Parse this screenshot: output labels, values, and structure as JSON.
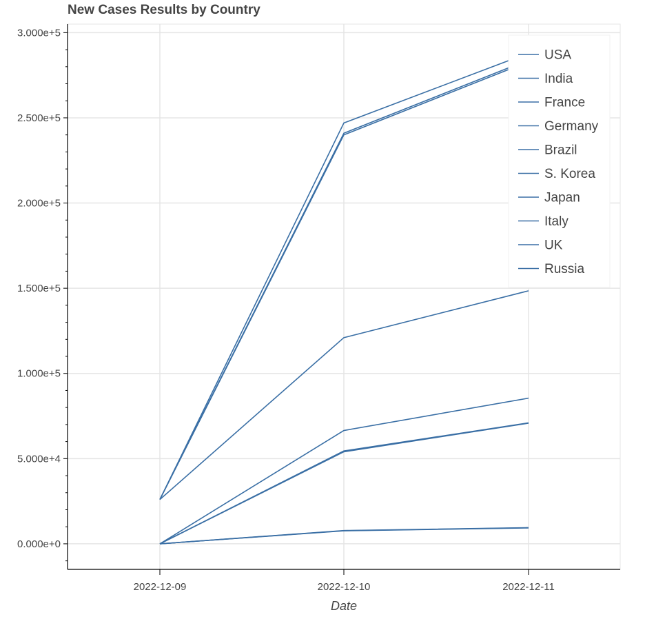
{
  "chart_data": {
    "type": "line",
    "title": "New Cases Results by Country",
    "xlabel": "Date",
    "ylabel": "",
    "categories": [
      "2022-12-09",
      "2022-12-10",
      "2022-12-11"
    ],
    "ylim": [
      -15000,
      305000
    ],
    "yticks": [
      0,
      50000,
      100000,
      150000,
      200000,
      250000,
      300000
    ],
    "ytick_labels": [
      "0.000e+0",
      "5.000e+4",
      "1.000e+5",
      "1.500e+5",
      "2.000e+5",
      "2.500e+5",
      "3.000e+5"
    ],
    "grid": true,
    "legend": "top-right",
    "line_color": "#3a6fa5",
    "series": [
      {
        "name": "USA",
        "values": [
          26000,
          247000,
          288000
        ]
      },
      {
        "name": "India",
        "values": [
          26000,
          240000,
          283000
        ]
      },
      {
        "name": "France",
        "values": [
          26000,
          241000,
          284000
        ]
      },
      {
        "name": "Germany",
        "values": [
          26000,
          121000,
          148500
        ]
      },
      {
        "name": "Brazil",
        "values": [
          0,
          66500,
          85500
        ]
      },
      {
        "name": "S. Korea",
        "values": [
          0,
          54500,
          71000
        ]
      },
      {
        "name": "Japan",
        "values": [
          0,
          54000,
          70800
        ]
      },
      {
        "name": "Italy",
        "values": [
          0,
          7800,
          9500
        ]
      },
      {
        "name": "UK",
        "values": [
          0,
          7600,
          9300
        ]
      },
      {
        "name": "Russia",
        "values": [
          0,
          7700,
          9400
        ]
      }
    ]
  }
}
